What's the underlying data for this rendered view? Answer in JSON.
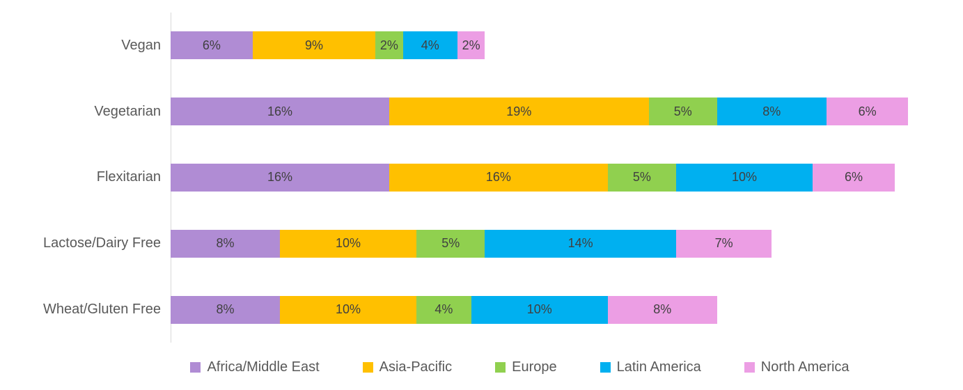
{
  "chart_data": {
    "type": "bar",
    "orientation": "horizontal",
    "stacked": true,
    "title": "",
    "xlabel": "",
    "ylabel": "",
    "xlim": [
      0,
      58
    ],
    "grid": false,
    "legend_position": "bottom",
    "axis_line_color": "#d9d9d9",
    "data_label_color": "#404040",
    "category_label_color": "#595959",
    "legend_text_color": "#595959",
    "categories": [
      "Vegan",
      "Vegetarian",
      "Flexitarian",
      "Lactose/Dairy Free",
      "Wheat/Gluten Free"
    ],
    "series": [
      {
        "name": "Africa/Middle East",
        "color": "#b08cd4",
        "values": [
          6,
          16,
          16,
          8,
          8
        ],
        "labels": [
          "6%",
          "16%",
          "16%",
          "8%",
          "8%"
        ]
      },
      {
        "name": "Asia-Pacific",
        "color": "#ffc000",
        "values": [
          9,
          19,
          16,
          10,
          10
        ],
        "labels": [
          "9%",
          "19%",
          "16%",
          "10%",
          "10%"
        ]
      },
      {
        "name": "Europe",
        "color": "#90d04f",
        "values": [
          2,
          5,
          5,
          5,
          4
        ],
        "labels": [
          "2%",
          "5%",
          "5%",
          "5%",
          "4%"
        ]
      },
      {
        "name": "Latin America",
        "color": "#00b0f0",
        "values": [
          4,
          8,
          10,
          14,
          10
        ],
        "labels": [
          "4%",
          "8%",
          "10%",
          "14%",
          "10%"
        ]
      },
      {
        "name": "North America",
        "color": "#ec9ee4",
        "values": [
          2,
          6,
          6,
          7,
          8
        ],
        "labels": [
          "2%",
          "6%",
          "6%",
          "7%",
          "8%"
        ]
      }
    ]
  }
}
